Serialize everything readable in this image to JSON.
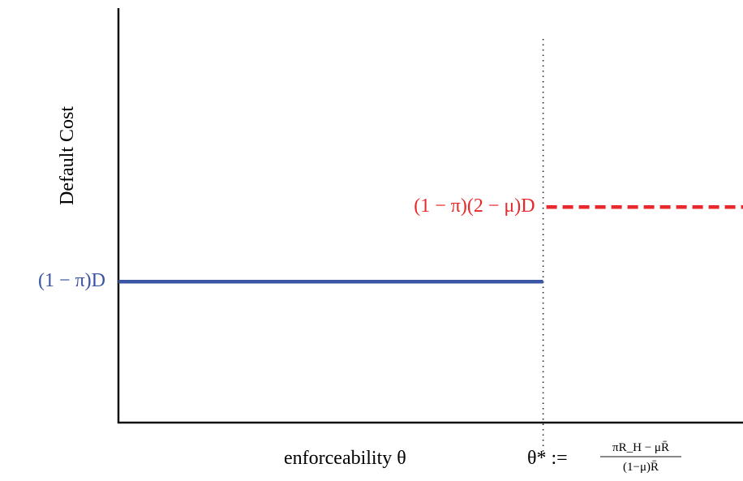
{
  "chart_data": {
    "type": "line",
    "title": "",
    "xlabel": "enforceability θ",
    "ylabel": "Default Cost",
    "xlim": [
      0,
      1
    ],
    "ylim": [
      0,
      1
    ],
    "grid": false,
    "threshold": {
      "x": 0.68,
      "label_lhs": "θ* :=",
      "label_num": "πR_H − μR̄",
      "label_den": "(1−μ)R̄"
    },
    "series": [
      {
        "name": "",
        "label": "(1 − π)D",
        "color": "#3a55a4",
        "style": "solid",
        "x": [
          0,
          0.68
        ],
        "y": [
          0.34,
          0.34
        ]
      },
      {
        "name": "",
        "label": "(1 − π)(2 − μ)D",
        "color": "#e8282b",
        "style": "dashed",
        "x": [
          0.68,
          1.0
        ],
        "y": [
          0.52,
          0.52
        ]
      }
    ]
  }
}
